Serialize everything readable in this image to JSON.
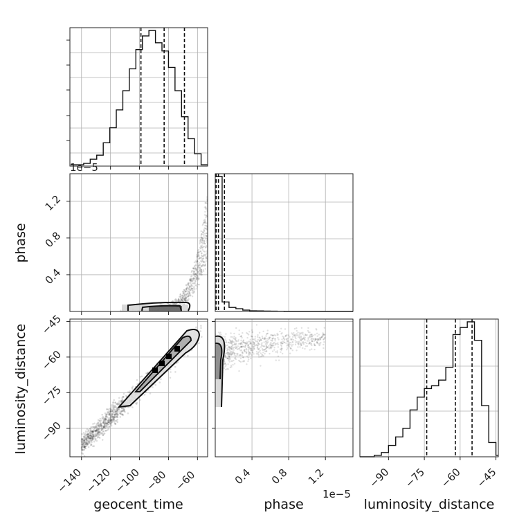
{
  "chart_data": [
    {
      "type": "histogram",
      "parameter": "geocent_time",
      "xlim": [
        -148,
        -53
      ],
      "bin_edges": [
        -147.5,
        -143.0,
        -138.5,
        -134.0,
        -129.5,
        -125.0,
        -120.5,
        -116.0,
        -111.5,
        -107.0,
        -102.5,
        -98.0,
        -93.5,
        -89.0,
        -84.5,
        -80.0,
        -75.5,
        -71.0,
        -66.5,
        -62.0,
        -57.5,
        -53.0
      ],
      "counts": [
        0.01,
        0.01,
        0.02,
        0.05,
        0.08,
        0.17,
        0.28,
        0.41,
        0.55,
        0.71,
        0.85,
        0.95,
        0.99,
        0.9,
        0.84,
        0.72,
        0.55,
        0.36,
        0.2,
        0.09,
        0.01
      ],
      "quantiles": [
        -99,
        -83,
        -69
      ],
      "grid": true
    },
    {
      "type": "histogram",
      "parameter": "phase",
      "xlim": [
        0,
        1.5e-05
      ],
      "bin_edges": [
        0,
        7.5e-07,
        1.5e-06,
        2.25e-06,
        3e-06,
        3.75e-06,
        4.5e-06,
        5.25e-06,
        6e-06,
        6.75e-06,
        7.5e-06,
        8.25e-06,
        9e-06,
        9.75e-06,
        1.05e-05,
        1.125e-05,
        1.2e-05,
        1.275e-05,
        1.35e-05,
        1.425e-05,
        1.5e-05
      ],
      "counts": [
        1.0,
        0.07,
        0.03,
        0.02,
        0.01,
        0.005,
        0.004,
        0.003,
        0.002,
        0.001,
        0.0,
        0.0,
        0.0,
        0.0,
        0.0,
        0.0,
        0.0,
        0.0,
        0.0,
        0.0
      ],
      "quantiles": [
        1e-07,
        3.5e-07,
        1e-06
      ],
      "grid": true
    },
    {
      "type": "histogram",
      "parameter": "luminosity_distance",
      "xlim": [
        -102,
        -44
      ],
      "bin_edges": [
        -102,
        -99,
        -96,
        -93,
        -90,
        -87,
        -84,
        -81,
        -78,
        -75,
        -72,
        -69,
        -66,
        -63,
        -60,
        -57,
        -54,
        -51,
        -48,
        -45,
        -42
      ],
      "counts": [
        0.0,
        0.0,
        0.01,
        0.03,
        0.08,
        0.14,
        0.2,
        0.33,
        0.42,
        0.48,
        0.5,
        0.54,
        0.63,
        0.86,
        0.91,
        0.95,
        0.82,
        0.36,
        0.1,
        0.01
      ],
      "quantiles": [
        -74,
        -62,
        -55
      ],
      "grid": true
    },
    {
      "type": "scatter",
      "x_parameter": "geocent_time",
      "y_parameter": "phase",
      "xlim": [
        -148,
        -53
      ],
      "ylim": [
        0,
        1.5e-05
      ],
      "ylabel": "phase",
      "y_ticks": [
        0.4,
        0.8,
        1.2
      ],
      "y_scale_label": "1e−5",
      "trend": {
        "x_start": -115,
        "x_end": -53,
        "shape": "exponential_rise"
      },
      "contour_levels": 2
    },
    {
      "type": "scatter",
      "x_parameter": "geocent_time",
      "y_parameter": "luminosity_distance",
      "xlim": [
        -148,
        -53
      ],
      "ylim": [
        -102,
        -44
      ],
      "xlabel": "geocent_time",
      "ylabel": "luminosity_distance",
      "x_ticks": [
        -140,
        -120,
        -100,
        -80,
        -60
      ],
      "y_ticks": [
        -45,
        -60,
        -75,
        -90
      ],
      "correlation_line": {
        "x_range": [
          -140,
          -55
        ],
        "y_at_x0": -97,
        "y_at_x1": -48
      },
      "contour_levels": 2
    },
    {
      "type": "scatter",
      "x_parameter": "phase",
      "y_parameter": "luminosity_distance",
      "xlim": [
        0,
        1.5e-05
      ],
      "ylim": [
        -102,
        -44
      ],
      "xlabel": "phase",
      "x_ticks": [
        0.4,
        0.8,
        1.2
      ],
      "x_scale_label": "1e−5",
      "contour_levels": 2
    },
    {
      "type": "axis",
      "parameter": "luminosity_distance",
      "xlabel": "luminosity_distance",
      "x_ticks": [
        -90,
        -75,
        -60,
        -45
      ]
    }
  ]
}
